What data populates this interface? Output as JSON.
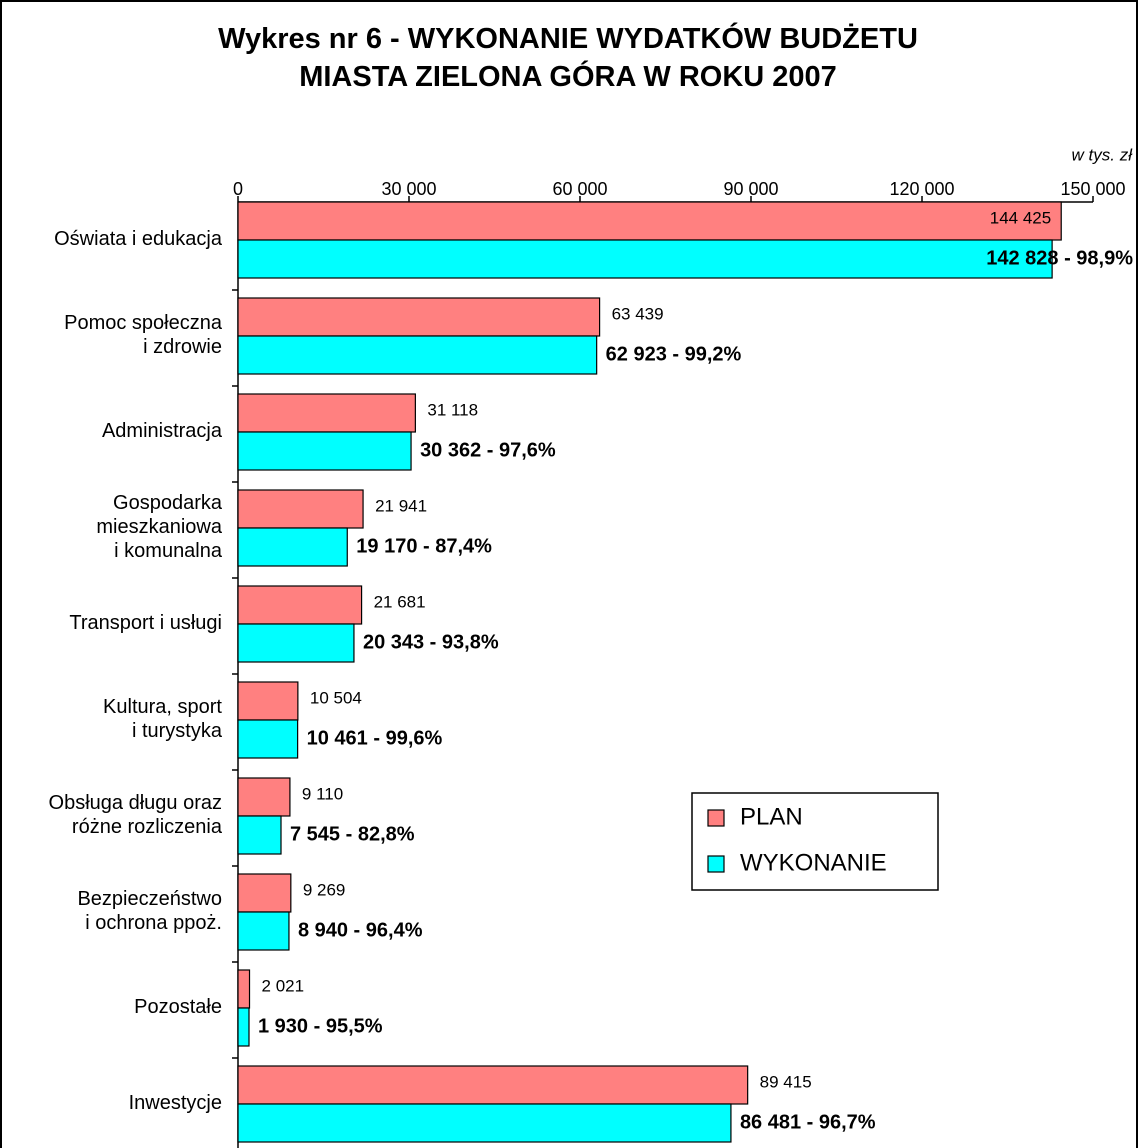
{
  "chart_data": {
    "type": "hbar",
    "title": "Wykres nr 6 - WYKONANIE WYDATKÓW BUDŻETU\nMIASTA ZIELONA GÓRA W ROKU 2007",
    "axis_label": "w tys. zł",
    "categories": [
      "Oświata i edukacja",
      "Pomoc społeczna\ni zdrowie",
      "Administracja",
      "Gospodarka\nmieszkaniowa\ni komunalna",
      "Transport i usługi",
      "Kultura, sport\ni turystyka",
      "Obsługa długu oraz\nróżne rozliczenia",
      "Bezpieczeństwo\ni ochrona ppoż.",
      "Pozostałe",
      "Inwestycje"
    ],
    "series": [
      {
        "name": "PLAN",
        "color": "#ff8080",
        "values": [
          144425,
          63439,
          31118,
          21941,
          21681,
          10504,
          9110,
          9269,
          2021,
          89415
        ],
        "value_labels": [
          "144 425",
          "63 439",
          "31 118",
          "21 941",
          "21 681",
          "10 504",
          "9 110",
          "9 269",
          "2 021",
          "89 415"
        ]
      },
      {
        "name": "WYKONANIE",
        "color": "#00ffff",
        "values": [
          142828,
          62923,
          30362,
          19170,
          20343,
          10461,
          7545,
          8940,
          1930,
          86481
        ],
        "value_labels": [
          "142 828 - 98,9%",
          "62 923 - 99,2%",
          "30 362 - 97,6%",
          "19 170 - 87,4%",
          "20 343 - 93,8%",
          "10 461 - 99,6%",
          "7 545 - 82,8%",
          "8 940 - 96,4%",
          "1 930 - 95,5%",
          "86 481 - 96,7%"
        ]
      }
    ],
    "xlim": [
      0,
      150000
    ],
    "xticks": [
      0,
      {
        "value": 30000,
        "label": "30 000"
      },
      {
        "value": 60000,
        "label": "60 000"
      },
      {
        "value": 90000,
        "label": "90 000"
      },
      {
        "value": 120000,
        "label": "120 000"
      },
      {
        "value": 150000,
        "label": "150 000"
      }
    ],
    "legend": "right"
  }
}
